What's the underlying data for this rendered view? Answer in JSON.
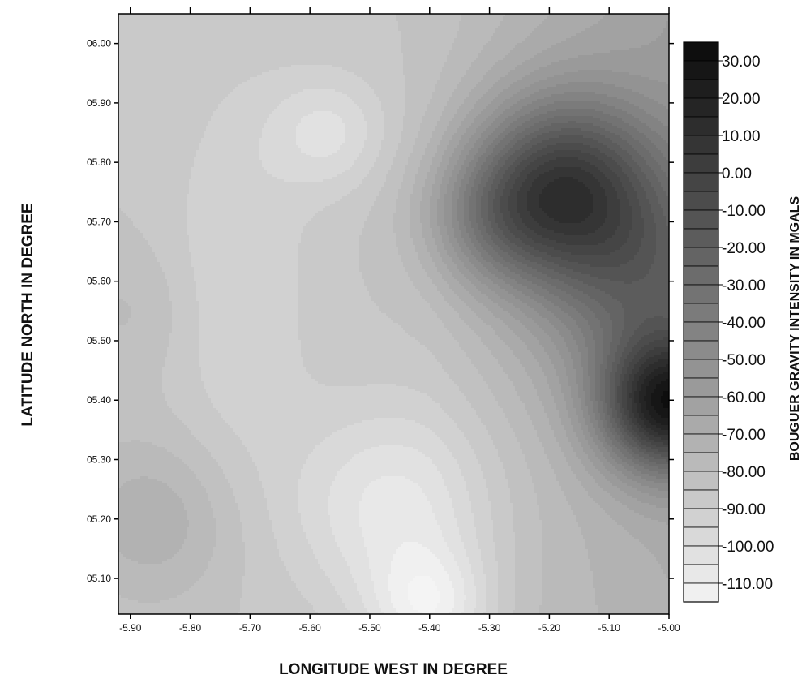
{
  "chart_data": {
    "type": "heatmap",
    "subtype": "filled-contour-map",
    "colormap": "grayscale (white = low, black = high)",
    "xlabel": "LONGITUDE  WEST  IN  DEGREE",
    "ylabel": "LATITUDE  NORTH  IN DEGREE",
    "colorbar_label": "BOUGUER  GRAVITY INTENSITY  IN  MGALS",
    "x_ticks": [
      "-5.90",
      "-5.80",
      "-5.70",
      "-5.60",
      "-5.50",
      "-5.40",
      "-5.30",
      "-5.20",
      "-5.10",
      "-5.00"
    ],
    "x_tick_values": [
      -5.9,
      -5.8,
      -5.7,
      -5.6,
      -5.5,
      -5.4,
      -5.3,
      -5.2,
      -5.1,
      -5.0
    ],
    "y_ticks": [
      "06.00",
      "05.90",
      "05.80",
      "05.70",
      "05.60",
      "05.50",
      "05.40",
      "05.30",
      "05.20",
      "05.10"
    ],
    "y_tick_values": [
      6.0,
      5.9,
      5.8,
      5.7,
      5.6,
      5.5,
      5.4,
      5.3,
      5.2,
      5.1
    ],
    "xlim": [
      -5.92,
      -5.0
    ],
    "ylim": [
      5.04,
      6.05
    ],
    "colorbar_ticks": [
      "30.00",
      "20.00",
      "10.00",
      "0.00",
      "-10.00",
      "-20.00",
      "-30.00",
      "-40.00",
      "-50.00",
      "-60.00",
      "-70.00",
      "-80.00",
      "-90.00",
      "-100.00",
      "-110.00"
    ],
    "colorbar_range": [
      -115,
      35
    ],
    "colorbar_step": 5,
    "features": [
      {
        "kind": "high",
        "name": "gravity high",
        "x": -5.18,
        "y": 5.76,
        "value": 15
      },
      {
        "kind": "high",
        "name": "gravity high (edge)",
        "x": -5.0,
        "y": 5.39,
        "value": 32
      },
      {
        "kind": "low",
        "name": "gravity low",
        "x": -5.46,
        "y": 5.22,
        "value": -98
      },
      {
        "kind": "low",
        "name": "gravity low",
        "x": -5.58,
        "y": 5.85,
        "value": -93
      },
      {
        "kind": "low",
        "name": "gravity low",
        "x": -5.4,
        "y": 5.05,
        "value": -110
      }
    ]
  }
}
